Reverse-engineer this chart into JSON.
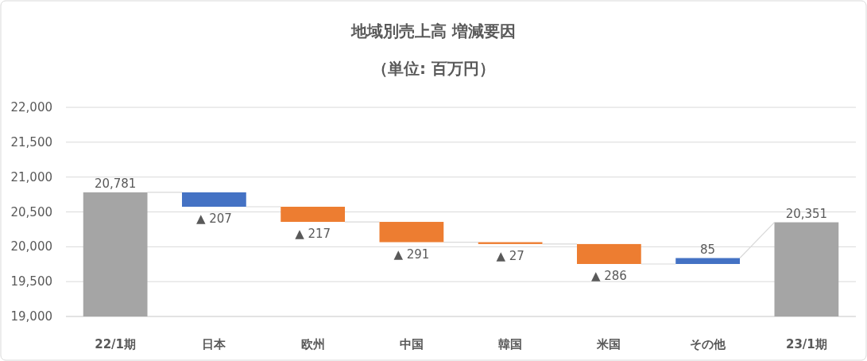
{
  "chart_data": {
    "type": "bar",
    "title": "地域別売上高 増減要因",
    "subtitle": "（単位: 百万円）",
    "categories": [
      "22/1期",
      "日本",
      "欧州",
      "中国",
      "韓国",
      "米国",
      "その他",
      "23/1期"
    ],
    "values": [
      1781,
      -207,
      -217,
      -291,
      -27,
      -286,
      85,
      1351
    ],
    "base": [
      19000,
      20781,
      20574,
      20357,
      20066,
      20039,
      19753,
      19000
    ],
    "colors": [
      "#a5a5a5",
      "#4472c4",
      "#ed7d31",
      "#ed7d31",
      "#ed7d31",
      "#ed7d31",
      "#4472c4",
      "#a5a5a5"
    ],
    "value_labels": [
      "20,781",
      "▲ 207",
      "▲ 217",
      "▲ 291",
      "▲ 27",
      "▲ 286",
      "85",
      "20,351"
    ],
    "ylim": [
      19000,
      22000
    ],
    "yticks": [
      {
        "value": 19000,
        "label": "19,000"
      },
      {
        "value": 19500,
        "label": "19,500"
      },
      {
        "value": 20000,
        "label": "20,000"
      },
      {
        "value": 20500,
        "label": "20,500"
      },
      {
        "value": 21000,
        "label": "21,000"
      },
      {
        "value": 21500,
        "label": "21,500"
      },
      {
        "value": 22000,
        "label": "22,000"
      }
    ],
    "grid": "y"
  }
}
